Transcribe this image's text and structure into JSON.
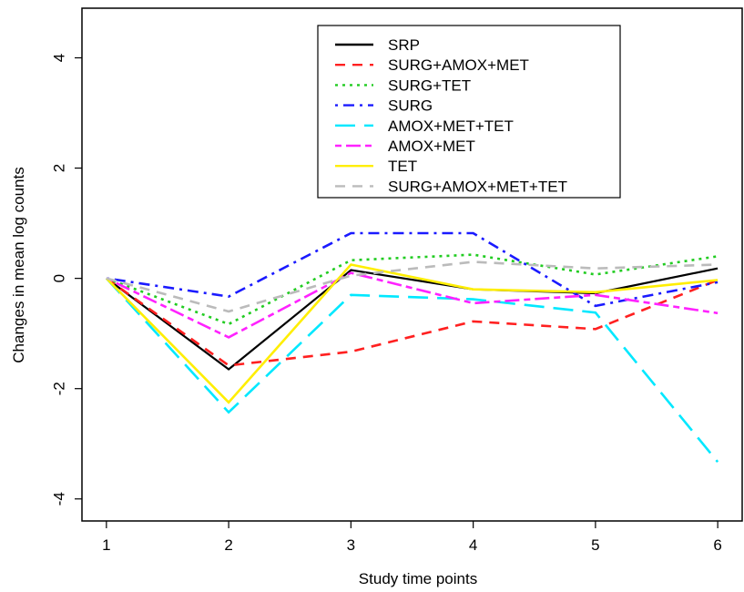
{
  "chart_data": {
    "type": "line",
    "title": "",
    "xlabel": "Study time points",
    "ylabel": "Changes in mean log counts",
    "x": [
      1,
      2,
      3,
      4,
      5,
      6
    ],
    "xlim": [
      0.8,
      6.2
    ],
    "ylim": [
      -4.4,
      4.9
    ],
    "x_ticks": [
      "1",
      "2",
      "3",
      "4",
      "5",
      "6"
    ],
    "y_ticks": [
      -4,
      -2,
      0,
      2,
      4
    ],
    "y_tick_labels": [
      "-4",
      "-2",
      "0",
      "2",
      "4"
    ],
    "grid": false,
    "legend_position": "top-center",
    "series": [
      {
        "name": "SRP",
        "color": "#000000",
        "dash": "solid",
        "values": [
          0,
          -1.65,
          0.15,
          -0.2,
          -0.27,
          0.18
        ]
      },
      {
        "name": "SURG+AMOX+MET",
        "color": "#ff2020",
        "dash": "dashed",
        "values": [
          0,
          -1.58,
          -1.33,
          -0.78,
          -0.92,
          -0.03
        ]
      },
      {
        "name": "SURG+TET",
        "color": "#22cc22",
        "dash": "dotted",
        "values": [
          0,
          -0.83,
          0.33,
          0.43,
          0.07,
          0.4
        ]
      },
      {
        "name": "SURG",
        "color": "#1a1aff",
        "dash": "dotdash",
        "values": [
          0,
          -0.33,
          0.82,
          0.82,
          -0.5,
          -0.07
        ]
      },
      {
        "name": "AMOX+MET+TET",
        "color": "#00e8ff",
        "dash": "longdash",
        "values": [
          0,
          -2.43,
          -0.3,
          -0.38,
          -0.62,
          -3.33
        ]
      },
      {
        "name": "AMOX+MET",
        "color": "#ff22ff",
        "dash": "twodash",
        "values": [
          0,
          -1.07,
          0.1,
          -0.45,
          -0.3,
          -0.63
        ]
      },
      {
        "name": "TET",
        "color": "#ffee00",
        "dash": "solid",
        "values": [
          0,
          -2.25,
          0.25,
          -0.2,
          -0.25,
          -0.03
        ]
      },
      {
        "name": "SURG+AMOX+MET+TET",
        "color": "#bbbbbb",
        "dash": "dashed",
        "values": [
          0,
          -0.6,
          0.05,
          0.3,
          0.18,
          0.25
        ]
      }
    ]
  }
}
